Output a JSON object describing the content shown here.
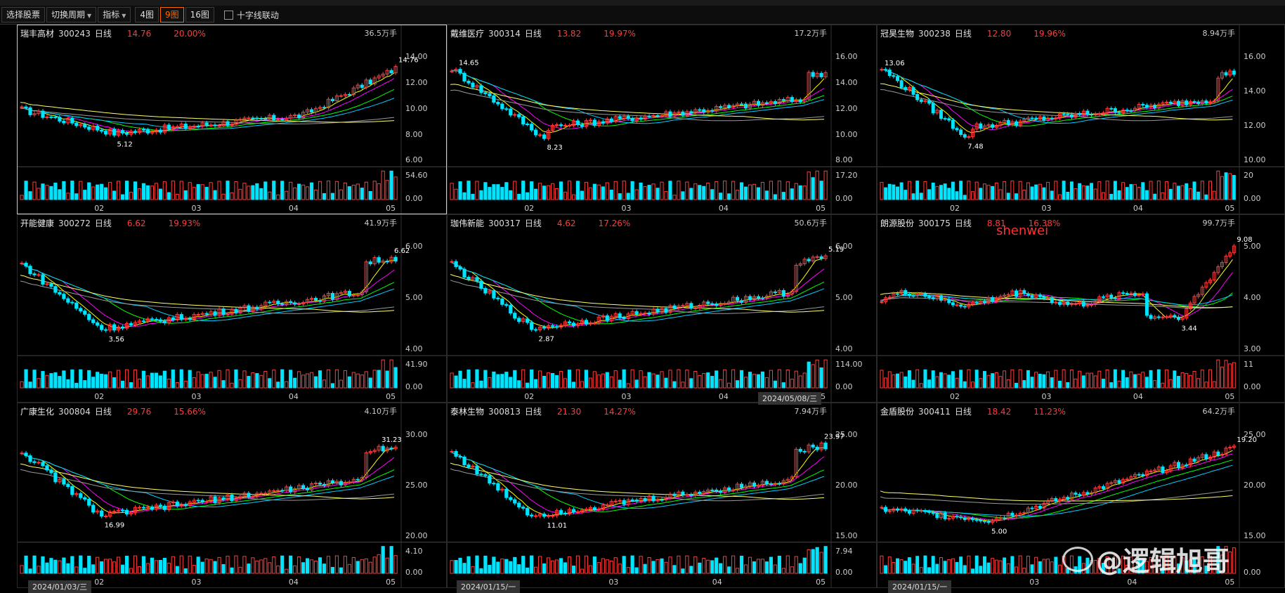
{
  "toolbar": {
    "items": [
      {
        "label": "选择股票",
        "caret": false,
        "active": false
      },
      {
        "label": "切换周期",
        "caret": true,
        "active": false
      },
      {
        "label": "指标",
        "caret": true,
        "active": false
      },
      {
        "label": "4图",
        "caret": false,
        "active": false
      },
      {
        "label": "9图",
        "caret": false,
        "active": true
      },
      {
        "label": "16图",
        "caret": false,
        "active": false
      }
    ],
    "crosshair_link": "十字线联动"
  },
  "panels": [
    {
      "name": "瑞丰高材",
      "code": "300243",
      "period": "日线",
      "price": "14.76",
      "pct": "20.00%",
      "volume": "36.5万手",
      "y_ticks": [
        "14.00",
        "12.00",
        "10.00",
        "8.00",
        "6.00"
      ],
      "vol_ticks": [
        "54.60",
        "0.00"
      ],
      "months": [
        "02",
        "03",
        "04",
        "05"
      ],
      "low_label": "5.12",
      "high_label": "14.76",
      "selected": true
    },
    {
      "name": "戴维医疗",
      "code": "300314",
      "period": "日线",
      "price": "13.82",
      "pct": "19.97%",
      "volume": "17.2万手",
      "y_ticks": [
        "16.00",
        "14.00",
        "12.00",
        "10.00",
        "8.00"
      ],
      "vol_ticks": [
        "17.20",
        "0.00"
      ],
      "months": [
        "02",
        "03",
        "04",
        "05"
      ],
      "low_label": "8.23",
      "high_label": "14.65",
      "selected": false
    },
    {
      "name": "冠昊生物",
      "code": "300238",
      "period": "日线",
      "price": "12.80",
      "pct": "19.96%",
      "volume": "8.94万手",
      "y_ticks": [
        "16.00",
        "14.00",
        "12.00",
        "10.00"
      ],
      "vol_ticks": [
        "20",
        "0.00"
      ],
      "months": [
        "02",
        "03",
        "04",
        "05"
      ],
      "low_label": "7.48",
      "high_label": "13.06",
      "selected": false
    },
    {
      "name": "开能健康",
      "code": "300272",
      "period": "日线",
      "price": "6.62",
      "pct": "19.93%",
      "volume": "41.9万手",
      "y_ticks": [
        "6.00",
        "5.00",
        "4.00"
      ],
      "vol_ticks": [
        "41.90",
        "0.00"
      ],
      "months": [
        "02",
        "03",
        "04",
        "05"
      ],
      "low_label": "3.56",
      "high_label": "6.62",
      "selected": false
    },
    {
      "name": "珈伟新能",
      "code": "300317",
      "period": "日线",
      "price": "4.62",
      "pct": "17.26%",
      "volume": "50.6万手",
      "y_ticks": [
        "6.00",
        "5.00",
        "4.00"
      ],
      "vol_ticks": [
        "114.00",
        "0.00"
      ],
      "months": [
        "02",
        "03",
        "04",
        "05"
      ],
      "low_label": "2.87",
      "high_label": "5.19",
      "selected": false
    },
    {
      "name": "朗源股份",
      "code": "300175",
      "period": "日线",
      "price": "8.81",
      "pct": "16.38%",
      "volume": "99.7万手",
      "y_ticks": [
        "5.00",
        "4.00",
        "3.00"
      ],
      "vol_ticks": [
        "11",
        "0.00"
      ],
      "months": [
        "02",
        "03",
        "04",
        "05"
      ],
      "low_label": "3.44",
      "high_label": "9.08",
      "selected": false
    },
    {
      "name": "广康生化",
      "code": "300804",
      "period": "日线",
      "price": "29.76",
      "pct": "15.66%",
      "volume": "4.10万手",
      "y_ticks": [
        "30.00",
        "25.00",
        "20.00"
      ],
      "vol_ticks": [
        "4.10",
        "0.00"
      ],
      "months": [
        "02",
        "03",
        "04",
        "05"
      ],
      "low_label": "16.99",
      "high_label": "31.23",
      "selected": false
    },
    {
      "name": "泰林生物",
      "code": "300813",
      "period": "日线",
      "price": "21.30",
      "pct": "14.27%",
      "volume": "7.94万手",
      "y_ticks": [
        "25.00",
        "20.00",
        "15.00"
      ],
      "vol_ticks": [
        "7.94",
        "0.00"
      ],
      "months": [
        "03",
        "04",
        "05"
      ],
      "low_label": "11.01",
      "high_label": "23.97",
      "selected": false
    },
    {
      "name": "金盾股份",
      "code": "300411",
      "period": "日线",
      "price": "18.42",
      "pct": "11.23%",
      "volume": "64.2万手",
      "y_ticks": [
        "25.00",
        "20.00",
        "15.00"
      ],
      "vol_ticks": [
        "0.00"
      ],
      "months": [
        "03",
        "04",
        "05"
      ],
      "low_label": "5.00",
      "high_label": "19.20",
      "selected": false
    }
  ],
  "date_tips": [
    "2024/05/08/三",
    "2024/01/03/三",
    "2024/01/15/一",
    "2024/01/15/一"
  ],
  "annotation": "shenwei",
  "watermark": "@逻辑旭哥",
  "colors": {
    "up": "#ff3b3b",
    "down": "#00e5ff",
    "ma5": "#ffffff",
    "ma10": "#ffff00",
    "ma20": "#ff00ff",
    "ma30": "#00ff00",
    "ma60": "#00ccff",
    "ma120": "#999999",
    "ma250": "#ffff66",
    "accent": "#ff6a00"
  }
}
